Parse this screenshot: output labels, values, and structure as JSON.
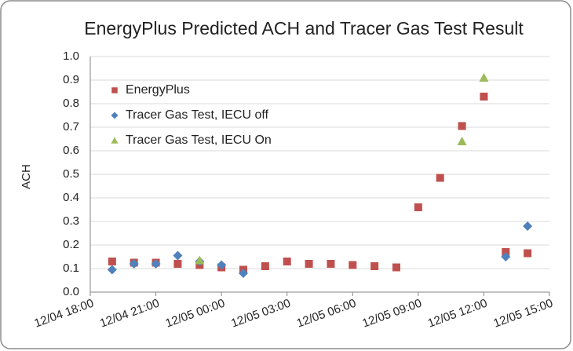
{
  "chart_data": {
    "type": "scatter",
    "title": "EnergyPlus Predicted ACH and Tracer Gas Test Result",
    "y_label": "ACH",
    "xlim": [
      "12/04 18:00",
      "12/05 15:00"
    ],
    "xticks": [
      "12/04 18:00",
      "12/04 21:00",
      "12/05 00:00",
      "12/05 03:00",
      "12/05 06:00",
      "12/05 09:00",
      "12/05 12:00",
      "12/05 15:00"
    ],
    "ylim": [
      0,
      1
    ],
    "yticks": [
      {
        "value": 0,
        "label": "0.0"
      },
      0.1,
      0.2,
      0.3,
      0.4,
      0.5,
      0.6,
      0.7,
      0.8,
      0.9,
      {
        "value": 1,
        "label": "1.0"
      }
    ],
    "grid": true,
    "legend": "upper left",
    "series": [
      {
        "name": "EnergyPlus",
        "color": "#c0504d",
        "marker": "square",
        "x": [
          "12/04 19:00",
          "12/04 20:00",
          "12/04 21:00",
          "12/04 22:00",
          "12/04 23:00",
          "12/05 00:00",
          "12/05 01:00",
          "12/05 02:00",
          "12/05 03:00",
          "12/05 04:00",
          "12/05 05:00",
          "12/05 06:00",
          "12/05 07:00",
          "12/05 08:00",
          "12/05 09:00",
          "12/05 10:00",
          "12/05 11:00",
          "12/05 12:00",
          "12/05 13:00",
          "12/05 14:00"
        ],
        "values": [
          0.13,
          0.125,
          0.125,
          0.12,
          0.115,
          0.105,
          0.095,
          0.11,
          0.13,
          0.12,
          0.12,
          0.115,
          0.11,
          0.105,
          0.36,
          0.485,
          0.705,
          0.83,
          0.17,
          0.165
        ]
      },
      {
        "name": "Tracer Gas Test, IECU off",
        "color": "#4f81bd",
        "marker": "diamond",
        "x": [
          "12/04 19:00",
          "12/04 20:00",
          "12/04 21:00",
          "12/04 22:00",
          "12/04 23:00",
          "12/05 00:00",
          "12/05 01:00",
          "12/05 13:00",
          "12/05 14:00"
        ],
        "values": [
          0.095,
          0.12,
          0.12,
          0.155,
          0.13,
          0.115,
          0.08,
          0.15,
          0.28
        ]
      },
      {
        "name": "Tracer Gas Test, IECU On",
        "color": "#9bbb59",
        "marker": "triangle",
        "x": [
          "12/04 23:00",
          "12/05 11:00",
          "12/05 12:00"
        ],
        "values": [
          0.135,
          0.64,
          0.91
        ]
      }
    ]
  }
}
